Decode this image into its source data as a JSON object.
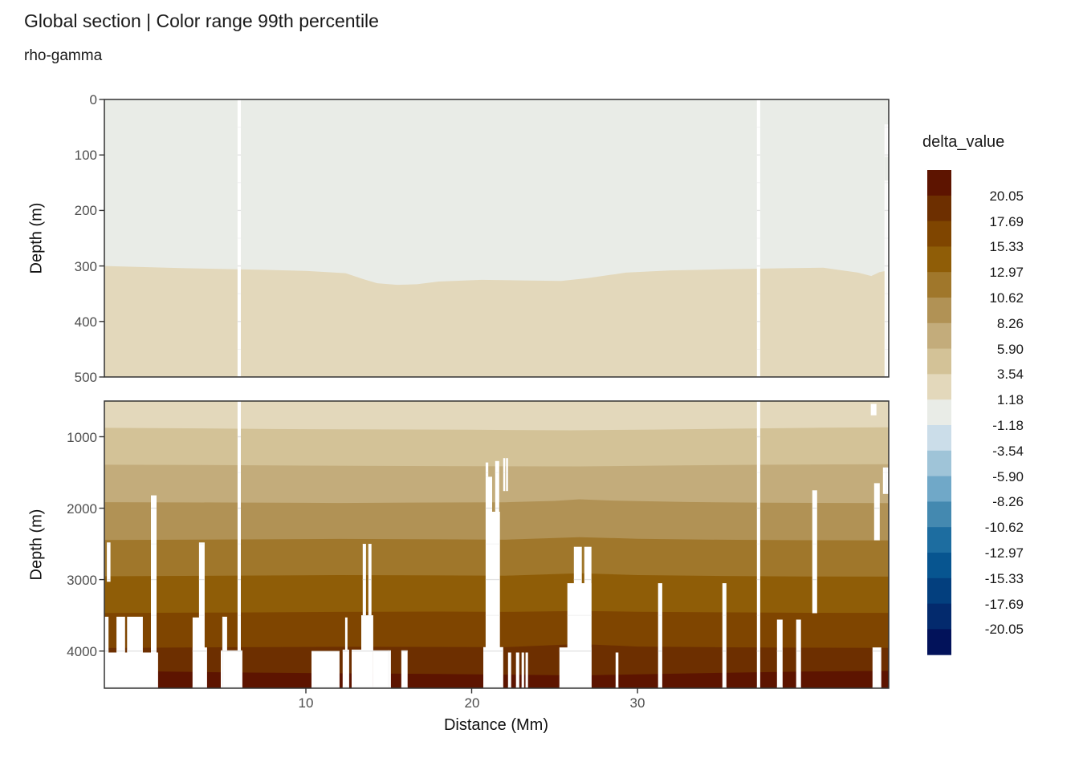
{
  "header": {
    "title": "Global section | Color range 99th percentile",
    "subtitle": "rho-gamma"
  },
  "colors": {
    "panel_border": "#333333",
    "grid_major": "#e3e3e3",
    "grid_minor": "#efefef",
    "tick_mark": "#333333",
    "tick_label": "#4d4d4d",
    "gap_fill": "#ffffff",
    "background": "#ffffff"
  },
  "chart_data": {
    "type": "heatmap",
    "title": "Global section | Color range 99th percentile",
    "subtitle": "rho-gamma",
    "xlabel": "Distance (Mm)",
    "ylabel": "Depth (m)",
    "x_domain_Mm": [
      -2.15,
      45.15
    ],
    "x_ticks": [
      10,
      20,
      30
    ],
    "x_minor_ticks": [
      5,
      15,
      25,
      35,
      45
    ],
    "legend": {
      "title": "delta_value",
      "tick_labels": [
        "20.05",
        "17.69",
        "15.33",
        "12.97",
        "10.62",
        "8.26",
        "5.90",
        "3.54",
        "1.18",
        "-1.18",
        "-3.54",
        "-5.90",
        "-8.26",
        "-10.62",
        "-12.97",
        "-15.33",
        "-17.69",
        "-20.05"
      ],
      "band_ranges": [
        ">20.05",
        "17.69 to 20.05",
        "15.33 to 17.69",
        "12.97 to 15.33",
        "10.62 to 12.97",
        "8.26 to 10.62",
        "5.90 to 8.26",
        "3.54 to 5.90",
        "1.18 to 3.54",
        "-1.18 to 1.18",
        "-3.54 to -1.18",
        "-5.90 to -3.54",
        "-8.26 to -5.90",
        "-10.62 to -8.26",
        "-12.97 to -10.62",
        "-15.33 to -12.97",
        "-17.69 to -15.33",
        "-20.05 to -17.69",
        "<-20.05"
      ],
      "band_colors": [
        "#5D1400",
        "#6D2F00",
        "#7F4500",
        "#8F5D07",
        "#A0772B",
        "#B19255",
        "#C3AC7B",
        "#D3C297",
        "#E3D8BB",
        "#E9ECE7",
        "#CBDDE9",
        "#9FC4D8",
        "#70A8C8",
        "#4489B0",
        "#1D6DA0",
        "#075590",
        "#033F7E",
        "#032A6D",
        "#02125A"
      ]
    },
    "upper_panel": {
      "depth_range": [
        0,
        500
      ],
      "y_ticks": [
        0,
        100,
        200,
        300,
        400,
        500
      ],
      "y_minor_ticks": [
        50,
        150,
        250,
        350,
        450
      ],
      "base_band": 9,
      "boundaries": [
        {
          "band_below": 8,
          "points": [
            [
              -2.15,
              300
            ],
            [
              2.7,
              304
            ],
            [
              7.5,
              307
            ],
            [
              10,
              309
            ],
            [
              12.4,
              313
            ],
            [
              13.5,
              324
            ],
            [
              14.3,
              331
            ],
            [
              15.5,
              334
            ],
            [
              16.7,
              333
            ],
            [
              18,
              328
            ],
            [
              20.6,
              325
            ],
            [
              23,
              326
            ],
            [
              25.4,
              327
            ],
            [
              27,
              322
            ],
            [
              29.3,
              312
            ],
            [
              32,
              308
            ],
            [
              35.1,
              306
            ],
            [
              39,
              304
            ],
            [
              41.2,
              303
            ],
            [
              43.3,
              312
            ],
            [
              44.1,
              318
            ],
            [
              44.6,
              311
            ],
            [
              45.15,
              308
            ]
          ]
        }
      ],
      "gaps": [
        [
          5.88,
          6.08,
          0,
          500
        ],
        [
          37.2,
          37.4,
          0,
          500
        ],
        [
          44.9,
          45.15,
          45,
          500
        ]
      ],
      "patches": [
        {
          "x0": 44.9,
          "x1": 45.15,
          "d0": 103,
          "d1": 146,
          "band": 9
        }
      ]
    },
    "lower_panel": {
      "depth_range": [
        500,
        4520
      ],
      "y_ticks": [
        1000,
        2000,
        3000,
        4000
      ],
      "y_minor_ticks": [
        1500,
        2500,
        3500,
        4500
      ],
      "base_band": 8,
      "boundaries": [
        {
          "band_below": 7,
          "points": [
            [
              -2.15,
              875
            ],
            [
              3,
              882
            ],
            [
              8,
              892
            ],
            [
              14,
              898
            ],
            [
              20,
              902
            ],
            [
              26,
              910
            ],
            [
              31,
              900
            ],
            [
              36,
              886
            ],
            [
              41,
              874
            ],
            [
              45.15,
              868
            ]
          ]
        },
        {
          "band_below": 6,
          "points": [
            [
              -2.15,
              1392
            ],
            [
              4,
              1396
            ],
            [
              10,
              1404
            ],
            [
              16,
              1410
            ],
            [
              22,
              1414
            ],
            [
              26.5,
              1415
            ],
            [
              32,
              1403
            ],
            [
              37,
              1393
            ],
            [
              42,
              1387
            ],
            [
              45.15,
              1385
            ]
          ]
        },
        {
          "band_below": 5,
          "points": [
            [
              -2.15,
              1916
            ],
            [
              5,
              1920
            ],
            [
              12,
              1927
            ],
            [
              18,
              1921
            ],
            [
              22,
              1917
            ],
            [
              25,
              1898
            ],
            [
              26.5,
              1876
            ],
            [
              28.5,
              1894
            ],
            [
              33,
              1914
            ],
            [
              38,
              1924
            ],
            [
              45.15,
              1929
            ]
          ]
        },
        {
          "band_below": 4,
          "points": [
            [
              -2.15,
              2446
            ],
            [
              5,
              2438
            ],
            [
              12,
              2430
            ],
            [
              18,
              2436
            ],
            [
              22,
              2441
            ],
            [
              26.5,
              2406
            ],
            [
              30,
              2428
            ],
            [
              35,
              2442
            ],
            [
              40,
              2448
            ],
            [
              45.15,
              2450
            ]
          ]
        },
        {
          "band_below": 3,
          "points": [
            [
              -2.15,
              2953
            ],
            [
              5,
              2945
            ],
            [
              12,
              2937
            ],
            [
              18,
              2941
            ],
            [
              22,
              2946
            ],
            [
              26.5,
              2911
            ],
            [
              30,
              2937
            ],
            [
              35,
              2949
            ],
            [
              40,
              2956
            ],
            [
              45.15,
              2958
            ]
          ]
        },
        {
          "band_below": 2,
          "points": [
            [
              -2.15,
              3468
            ],
            [
              5,
              3461
            ],
            [
              12,
              3452
            ],
            [
              18,
              3448
            ],
            [
              22,
              3452
            ],
            [
              26.5,
              3439
            ],
            [
              30,
              3450
            ],
            [
              35,
              3458
            ],
            [
              40,
              3464
            ],
            [
              45.15,
              3466
            ]
          ]
        },
        {
          "band_below": 1,
          "points": [
            [
              -2.15,
              3957
            ],
            [
              5,
              3947
            ],
            [
              12,
              3941
            ],
            [
              18,
              3943
            ],
            [
              22,
              3946
            ],
            [
              26.5,
              3901
            ],
            [
              30,
              3937
            ],
            [
              35,
              3947
            ],
            [
              40,
              3953
            ],
            [
              45.15,
              3955
            ]
          ]
        },
        {
          "band_below": 0,
          "points": [
            [
              -2.15,
              4278
            ],
            [
              5,
              4298
            ],
            [
              12,
              4312
            ],
            [
              18,
              4320
            ],
            [
              22,
              4330
            ],
            [
              26.5,
              4342
            ],
            [
              30,
              4326
            ],
            [
              35,
              4306
            ],
            [
              40,
              4288
            ],
            [
              45.15,
              4278
            ]
          ]
        }
      ],
      "gaps": [
        [
          -2.15,
          1.09,
          4020,
          4520
        ],
        [
          -2.15,
          -1.9,
          3520,
          4520
        ],
        [
          -2.0,
          -1.78,
          2480,
          3030
        ],
        [
          -1.42,
          -0.9,
          3520,
          4520
        ],
        [
          -0.78,
          0.17,
          3520,
          4520
        ],
        [
          0.66,
          1.0,
          1820,
          4520
        ],
        [
          3.17,
          3.56,
          3530,
          4520
        ],
        [
          3.56,
          3.9,
          2480,
          4520
        ],
        [
          3.17,
          4.04,
          3950,
          4520
        ],
        [
          4.96,
          5.25,
          3520,
          4520
        ],
        [
          4.87,
          6.17,
          3990,
          4520
        ],
        [
          5.88,
          6.08,
          500,
          4520
        ],
        [
          10.34,
          12.03,
          4000,
          4520
        ],
        [
          12.22,
          12.61,
          3980,
          4520
        ],
        [
          12.37,
          12.51,
          3530,
          4520
        ],
        [
          12.76,
          13.34,
          3980,
          4520
        ],
        [
          13.43,
          13.63,
          2500,
          4520
        ],
        [
          13.77,
          13.96,
          2500,
          4520
        ],
        [
          13.34,
          14.06,
          3500,
          4520
        ],
        [
          14.06,
          15.13,
          3990,
          4520
        ],
        [
          15.76,
          16.14,
          3990,
          4520
        ],
        [
          20.84,
          21.0,
          1360,
          1560
        ],
        [
          20.84,
          21.23,
          1560,
          2050
        ],
        [
          21.42,
          21.66,
          1340,
          2050
        ],
        [
          20.84,
          21.7,
          2050,
          4520
        ],
        [
          20.7,
          21.9,
          3945,
          4520
        ],
        [
          21.9,
          22.02,
          1300,
          1760
        ],
        [
          22.07,
          22.19,
          1300,
          1760
        ],
        [
          22.19,
          22.38,
          4020,
          4520
        ],
        [
          22.67,
          22.87,
          4020,
          4520
        ],
        [
          23.01,
          23.16,
          4020,
          4520
        ],
        [
          23.25,
          23.4,
          4020,
          4520
        ],
        [
          26.16,
          26.64,
          2540,
          4520
        ],
        [
          26.79,
          27.22,
          2540,
          4520
        ],
        [
          25.77,
          27.22,
          3050,
          4520
        ],
        [
          25.29,
          27.22,
          3950,
          4520
        ],
        [
          28.68,
          28.85,
          4020,
          4520
        ],
        [
          31.24,
          31.49,
          3050,
          4520
        ],
        [
          35.12,
          35.36,
          3050,
          4520
        ],
        [
          37.2,
          37.4,
          500,
          4520
        ],
        [
          38.41,
          38.75,
          3560,
          4520
        ],
        [
          39.57,
          39.86,
          3560,
          4520
        ],
        [
          40.54,
          40.83,
          1750,
          3470
        ],
        [
          44.17,
          44.7,
          3950,
          4520
        ],
        [
          44.27,
          44.61,
          1650,
          2450
        ],
        [
          44.07,
          44.41,
          540,
          700
        ],
        [
          44.8,
          45.15,
          1430,
          1800
        ]
      ]
    }
  }
}
